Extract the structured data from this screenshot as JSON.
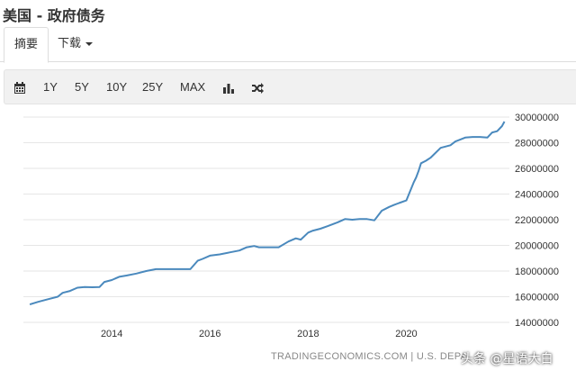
{
  "header": {
    "title": "美国 - 政府债务"
  },
  "tabs": [
    {
      "label": "摘要"
    },
    {
      "label": "下载"
    }
  ],
  "toolbar": {
    "ranges": [
      "1Y",
      "5Y",
      "10Y",
      "25Y",
      "MAX"
    ],
    "icons": [
      "calendar-icon",
      "bar-chart-icon",
      "shuffle-icon"
    ]
  },
  "source_label": "TRADINGECONOMICS.COM | U.S. DEPARTMENT",
  "watermark": "头条 @星语大白",
  "colors": {
    "line": "#4a89bd",
    "grid": "#e6e6e6",
    "toolbar_bg": "#f1f1f1"
  },
  "chart_data": {
    "type": "line",
    "title": "",
    "xlabel": "",
    "ylabel": "",
    "x_ticks": [
      "2014",
      "2016",
      "2018",
      "2020"
    ],
    "y_ticks": [
      "14000000",
      "16000000",
      "18000000",
      "20000000",
      "22000000",
      "24000000",
      "26000000",
      "28000000",
      "30000000"
    ],
    "ylim": [
      14000000,
      30000000
    ],
    "xlim": [
      2012.2,
      2022.1
    ],
    "grid": true,
    "series": [
      {
        "x": [
          2012.33,
          2012.5,
          2012.7,
          2012.9,
          2013.0,
          2013.15,
          2013.3,
          2013.45,
          2013.6,
          2013.75,
          2013.85,
          2014.0,
          2014.15,
          2014.3,
          2014.5,
          2014.7,
          2014.9,
          2015.0,
          2015.2,
          2015.4,
          2015.6,
          2015.75,
          2015.85,
          2016.0,
          2016.2,
          2016.4,
          2016.6,
          2016.75,
          2016.9,
          2017.0,
          2017.2,
          2017.4,
          2017.6,
          2017.75,
          2017.85,
          2018.0,
          2018.1,
          2018.25,
          2018.4,
          2018.6,
          2018.75,
          2018.9,
          2019.05,
          2019.2,
          2019.35,
          2019.5,
          2019.65,
          2019.75,
          2019.85,
          2020.0,
          2020.15,
          2020.2,
          2020.25,
          2020.3,
          2020.4,
          2020.5,
          2020.7,
          2020.9,
          2021.0,
          2021.2,
          2021.35,
          2021.5,
          2021.65,
          2021.75,
          2021.85,
          2021.95,
          2022.0
        ],
        "values": [
          15400000,
          15600000,
          15800000,
          16000000,
          16300000,
          16450000,
          16700000,
          16750000,
          16740000,
          16750000,
          17150000,
          17300000,
          17550000,
          17650000,
          17800000,
          18000000,
          18150000,
          18150000,
          18150000,
          18150000,
          18150000,
          18800000,
          18950000,
          19200000,
          19300000,
          19450000,
          19600000,
          19850000,
          19950000,
          19850000,
          19850000,
          19850000,
          20300000,
          20550000,
          20450000,
          21000000,
          21150000,
          21300000,
          21500000,
          21800000,
          22050000,
          22000000,
          22050000,
          22050000,
          21950000,
          22700000,
          23000000,
          23150000,
          23300000,
          23500000,
          24900000,
          25300000,
          25800000,
          26400000,
          26600000,
          26850000,
          27600000,
          27800000,
          28100000,
          28400000,
          28450000,
          28450000,
          28400000,
          28800000,
          28900000,
          29300000,
          29650000
        ]
      }
    ]
  }
}
